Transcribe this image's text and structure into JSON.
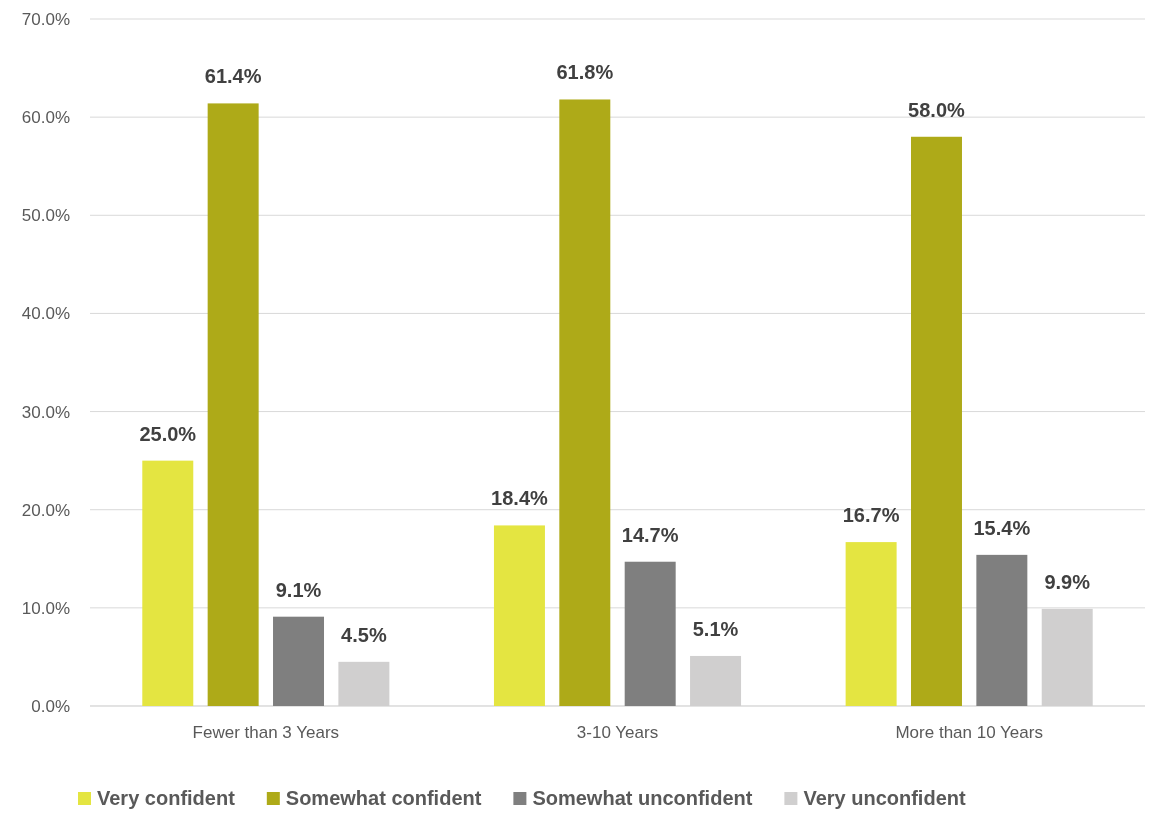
{
  "chart_data": {
    "type": "bar",
    "categories": [
      "Fewer than 3 Years",
      "3-10 Years",
      "More than 10 Years"
    ],
    "series": [
      {
        "name": "Very confident",
        "color": "#e4e541",
        "values": [
          25.0,
          18.4,
          16.7
        ],
        "value_labels": [
          "25.0%",
          "18.4%",
          "16.7%"
        ]
      },
      {
        "name": "Somewhat confident",
        "color": "#aeaa18",
        "values": [
          61.4,
          61.8,
          58.0
        ],
        "value_labels": [
          "61.4%",
          "61.8%",
          "58.0%"
        ]
      },
      {
        "name": "Somewhat unconfident",
        "color": "#7f7f7f",
        "values": [
          9.1,
          14.7,
          15.4
        ],
        "value_labels": [
          "9.1%",
          "14.7%",
          "15.4%"
        ]
      },
      {
        "name": "Very unconfident",
        "color": "#d0cfcf",
        "values": [
          4.5,
          5.1,
          9.9
        ],
        "value_labels": [
          "4.5%",
          "5.1%",
          "9.9%"
        ]
      }
    ],
    "ylim": [
      0,
      70
    ],
    "yticks": [
      {
        "value": 0,
        "label": "0.0%"
      },
      {
        "value": 10,
        "label": "10.0%"
      },
      {
        "value": 20,
        "label": "20.0%"
      },
      {
        "value": 30,
        "label": "30.0%"
      },
      {
        "value": 40,
        "label": "40.0%"
      },
      {
        "value": 50,
        "label": "50.0%"
      },
      {
        "value": 60,
        "label": "60.0%"
      },
      {
        "value": 70,
        "label": "70.0%"
      }
    ],
    "grid": "y",
    "legend": "bottom"
  }
}
